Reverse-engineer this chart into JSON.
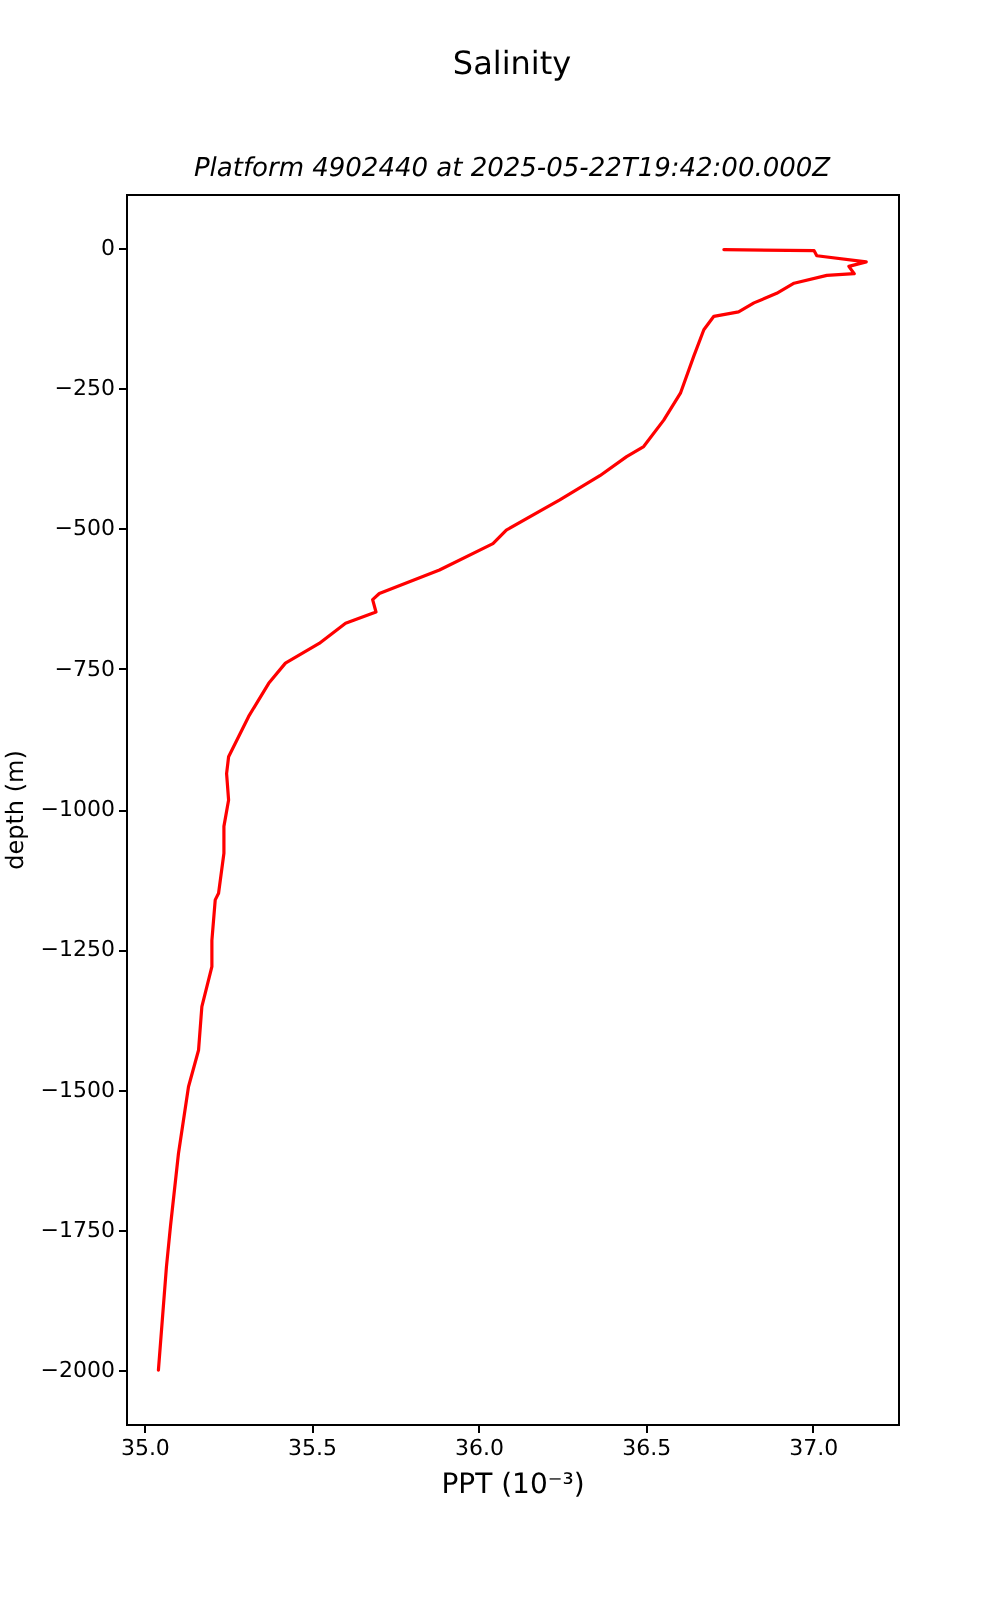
{
  "chart_data": {
    "type": "line",
    "title": "Salinity",
    "subtitle": "Platform 4902440 at 2025-05-22T19:42:00.000Z",
    "xlabel": "PPT (10⁻³)",
    "ylabel": "depth (m)",
    "xlim": [
      34.945,
      37.255
    ],
    "ylim": [
      -2096,
      96
    ],
    "xticks": [
      {
        "value": 35,
        "label": "35.0"
      },
      {
        "value": 35.5,
        "label": "35.5"
      },
      {
        "value": 36,
        "label": "36.0"
      },
      {
        "value": 36.5,
        "label": "36.5"
      },
      {
        "value": 37,
        "label": "37.0"
      }
    ],
    "yticks": [
      0,
      {
        "value": -250,
        "label": "−250"
      },
      {
        "value": -500,
        "label": "−500"
      },
      {
        "value": -750,
        "label": "−750"
      },
      {
        "value": -1000,
        "label": "−1000"
      },
      {
        "value": -1250,
        "label": "−1250"
      },
      {
        "value": -1500,
        "label": "−1500"
      },
      {
        "value": -1750,
        "label": "−1750"
      },
      {
        "value": -2000,
        "label": "−2000"
      }
    ],
    "series": [
      {
        "color": "#ff0000",
        "x": [
          36.734,
          37.004,
          37.012,
          37.16,
          37.108,
          37.124,
          37.042,
          36.944,
          36.892,
          36.824,
          36.778,
          36.704,
          36.674,
          36.644,
          36.604,
          36.554,
          36.494,
          36.443,
          36.363,
          36.243,
          36.083,
          36.043,
          35.883,
          35.703,
          35.683,
          35.693,
          35.602,
          35.523,
          35.422,
          35.372,
          35.312,
          35.252,
          35.246,
          35.252,
          35.238,
          35.238,
          35.222,
          35.212,
          35.202,
          35.202,
          35.172,
          35.162,
          35.132,
          35.102,
          35.078,
          35.066,
          35.042
        ],
        "values": [
          -3,
          -5,
          -14,
          -25,
          -33,
          -46,
          -49,
          -63,
          -81,
          -98,
          -114,
          -122,
          -146,
          -193,
          -259,
          -307,
          -354,
          -372,
          -406,
          -449,
          -503,
          -527,
          -574,
          -616,
          -627,
          -649,
          -669,
          -705,
          -740,
          -776,
          -835,
          -907,
          -937,
          -984,
          -1031,
          -1079,
          -1150,
          -1162,
          -1234,
          -1281,
          -1352,
          -1430,
          -1495,
          -1614,
          -1744,
          -1816,
          -2000
        ]
      }
    ]
  }
}
